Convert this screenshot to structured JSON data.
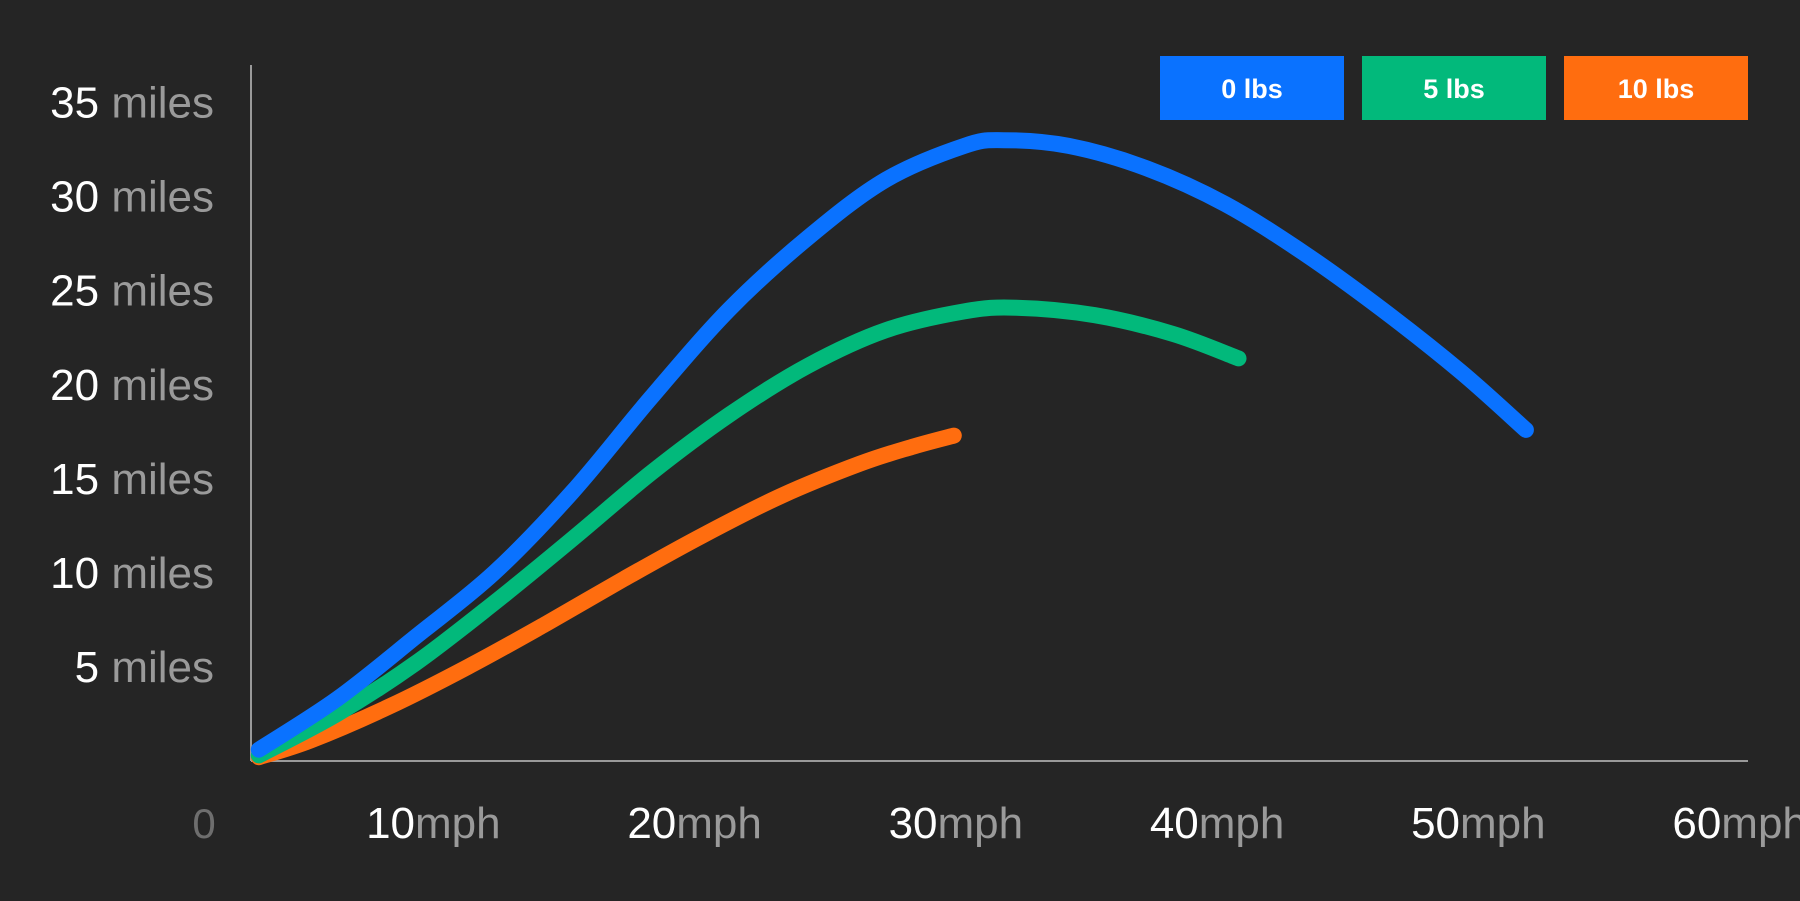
{
  "chart_data": {
    "type": "line",
    "title": "",
    "xlabel": "",
    "ylabel": "",
    "xlim": [
      5.7,
      63
    ],
    "ylim": [
      0,
      37
    ],
    "origin_label": "0",
    "x_ticks": [
      {
        "value": 10,
        "number": "10",
        "unit": "mph"
      },
      {
        "value": 20,
        "number": "20",
        "unit": "mph"
      },
      {
        "value": 30,
        "number": "30",
        "unit": "mph"
      },
      {
        "value": 40,
        "number": "40",
        "unit": "mph"
      },
      {
        "value": 50,
        "number": "50",
        "unit": "mph"
      },
      {
        "value": 60,
        "number": "60",
        "unit": "mph"
      }
    ],
    "y_ticks": [
      {
        "value": 5,
        "number": "5",
        "unit": "miles"
      },
      {
        "value": 10,
        "number": "10",
        "unit": "miles"
      },
      {
        "value": 15,
        "number": "15",
        "unit": "miles"
      },
      {
        "value": 20,
        "number": "20",
        "unit": "miles"
      },
      {
        "value": 25,
        "number": "25",
        "unit": "miles"
      },
      {
        "value": 30,
        "number": "30",
        "unit": "miles"
      },
      {
        "value": 35,
        "number": "35",
        "unit": "miles"
      }
    ],
    "legend_position": "top-right",
    "grid": false,
    "series": [
      {
        "name": "0 lbs",
        "color": "#0a72ff",
        "points": [
          [
            6,
            0.6
          ],
          [
            9,
            3.3
          ],
          [
            12,
            6.6
          ],
          [
            15,
            10.0
          ],
          [
            18,
            14.3
          ],
          [
            21,
            19.3
          ],
          [
            24,
            24.0
          ],
          [
            27,
            27.8
          ],
          [
            30,
            30.9
          ],
          [
            33,
            32.7
          ],
          [
            34.5,
            33.0
          ],
          [
            37,
            32.7
          ],
          [
            40,
            31.5
          ],
          [
            43,
            29.6
          ],
          [
            46,
            27.0
          ],
          [
            49,
            24.0
          ],
          [
            52,
            20.7
          ],
          [
            54.5,
            17.6
          ]
        ]
      },
      {
        "name": "5 lbs",
        "color": "#02b97b",
        "points": [
          [
            6,
            0.3
          ],
          [
            9,
            2.5
          ],
          [
            12,
            5.2
          ],
          [
            15,
            8.4
          ],
          [
            18,
            11.8
          ],
          [
            21,
            15.3
          ],
          [
            24,
            18.4
          ],
          [
            27,
            21.0
          ],
          [
            30,
            22.9
          ],
          [
            33,
            23.9
          ],
          [
            35,
            24.1
          ],
          [
            38,
            23.7
          ],
          [
            41,
            22.7
          ],
          [
            43.5,
            21.4
          ]
        ]
      },
      {
        "name": "10 lbs",
        "color": "#ff6d0f",
        "points": [
          [
            6,
            0.2
          ],
          [
            8,
            1.1
          ],
          [
            11,
            2.9
          ],
          [
            14,
            5.0
          ],
          [
            17,
            7.3
          ],
          [
            20,
            9.7
          ],
          [
            23,
            12.0
          ],
          [
            26,
            14.1
          ],
          [
            29,
            15.8
          ],
          [
            31,
            16.7
          ],
          [
            32.6,
            17.3
          ]
        ]
      }
    ]
  }
}
